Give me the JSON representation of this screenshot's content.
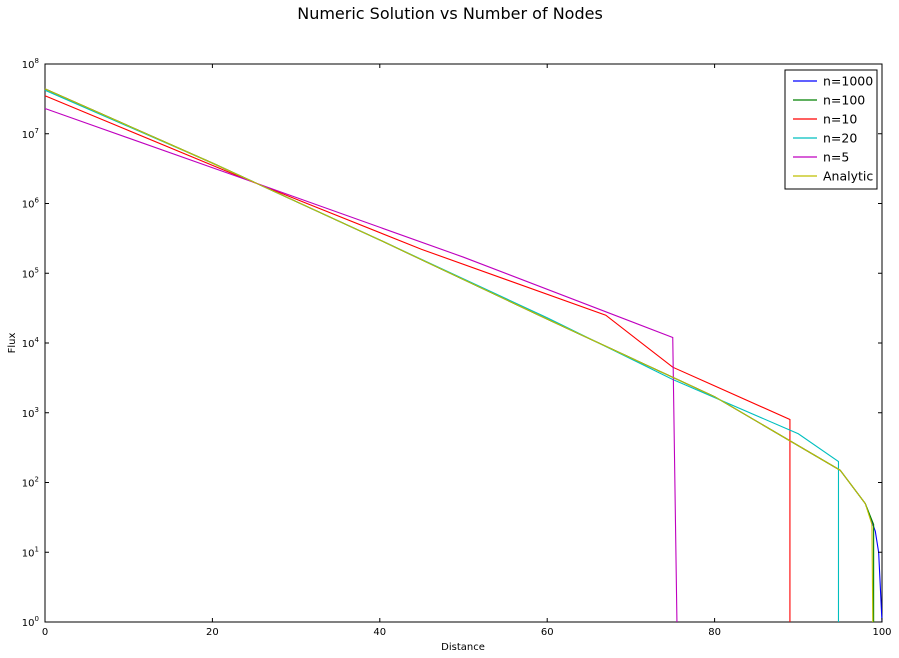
{
  "chart_data": {
    "type": "line",
    "title": "Numeric Solution vs Number of Nodes",
    "xlabel": "Distance",
    "ylabel": "Flux",
    "xlim": [
      0,
      100
    ],
    "ylim": [
      1,
      100000000
    ],
    "yscale": "log",
    "grid": false,
    "legend_position": "top-right",
    "x_ticks": [
      "0",
      "20",
      "40",
      "60",
      "80",
      "100"
    ],
    "y_ticks": [
      {
        "base": "10",
        "exp": "0"
      },
      {
        "base": "10",
        "exp": "1"
      },
      {
        "base": "10",
        "exp": "2"
      },
      {
        "base": "10",
        "exp": "3"
      },
      {
        "base": "10",
        "exp": "4"
      },
      {
        "base": "10",
        "exp": "5"
      },
      {
        "base": "10",
        "exp": "6"
      },
      {
        "base": "10",
        "exp": "7"
      },
      {
        "base": "10",
        "exp": "8"
      }
    ],
    "series": [
      {
        "name": "n=1000",
        "color": "#0000ff",
        "points": [
          [
            0,
            44000000
          ],
          [
            20,
            3800000
          ],
          [
            40,
            300000
          ],
          [
            60,
            22000
          ],
          [
            80,
            1700
          ],
          [
            95,
            150
          ],
          [
            98,
            50
          ],
          [
            99.2,
            20
          ],
          [
            99.6,
            10
          ],
          [
            100,
            1
          ]
        ]
      },
      {
        "name": "n=100",
        "color": "#008000",
        "points": [
          [
            0,
            44000000
          ],
          [
            20,
            3800000
          ],
          [
            40,
            300000
          ],
          [
            60,
            22000
          ],
          [
            80,
            1700
          ],
          [
            95,
            150
          ],
          [
            98,
            50
          ],
          [
            99,
            25
          ],
          [
            99,
            1
          ]
        ]
      },
      {
        "name": "n=10",
        "color": "#ff0000",
        "points": [
          [
            0,
            35000000
          ],
          [
            23,
            2500000
          ],
          [
            45,
            220000
          ],
          [
            67,
            25000
          ],
          [
            75,
            4500
          ],
          [
            89,
            800
          ],
          [
            89,
            1
          ]
        ]
      },
      {
        "name": "n=20",
        "color": "#00bfbf",
        "points": [
          [
            0,
            42000000
          ],
          [
            20,
            3800000
          ],
          [
            40,
            300000
          ],
          [
            60,
            23000
          ],
          [
            75,
            3000
          ],
          [
            90,
            500
          ],
          [
            94.8,
            200
          ],
          [
            94.8,
            1
          ]
        ]
      },
      {
        "name": "n=5",
        "color": "#bf00bf",
        "points": [
          [
            0,
            23000000
          ],
          [
            25,
            2000000
          ],
          [
            50,
            170000
          ],
          [
            75,
            12000
          ],
          [
            75.5,
            1
          ]
        ]
      },
      {
        "name": "Analytic",
        "color": "#bfbf00",
        "points": [
          [
            0,
            44000000
          ],
          [
            20,
            3800000
          ],
          [
            40,
            300000
          ],
          [
            60,
            22000
          ],
          [
            80,
            1700
          ],
          [
            95,
            150
          ],
          [
            98,
            50
          ],
          [
            98.8,
            25
          ],
          [
            98.9,
            1
          ]
        ]
      }
    ]
  }
}
